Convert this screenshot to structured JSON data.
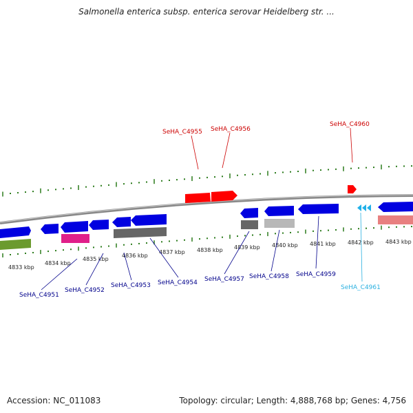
{
  "title": "Salmonella enterica subsp. enterica serovar Heidelberg str. ...",
  "footer": {
    "accession": "Accession: NC_011083",
    "summary": "Topology: circular; Length: 4,888,768 bp; Genes: 4,756"
  },
  "colors": {
    "forward_gene": "#0000ee",
    "reverse_gene": "#ff0000",
    "tick": "#2a7a1a",
    "backbone": "#888888",
    "label_forward": "#00008b",
    "label_reverse": "#cc0000",
    "label_highlight": "#2ab0e0"
  },
  "scale_labels": [
    "4833 kbp",
    "4834 kbp",
    "4835 kbp",
    "4836 kbp",
    "4837 kbp",
    "4838 kbp",
    "4839 kbp",
    "4840 kbp",
    "4841 kbp",
    "4842 kbp",
    "4843 kbp"
  ],
  "gene_labels": {
    "top": [
      "SeHA_C4955",
      "SeHA_C4956",
      "SeHA_C4960"
    ],
    "bottom": [
      "SeHA_C4951",
      "SeHA_C4952",
      "SeHA_C4953",
      "SeHA_C4954",
      "SeHA_C4957",
      "SeHA_C4958",
      "SeHA_C4959",
      "SeHA_C4961"
    ]
  }
}
